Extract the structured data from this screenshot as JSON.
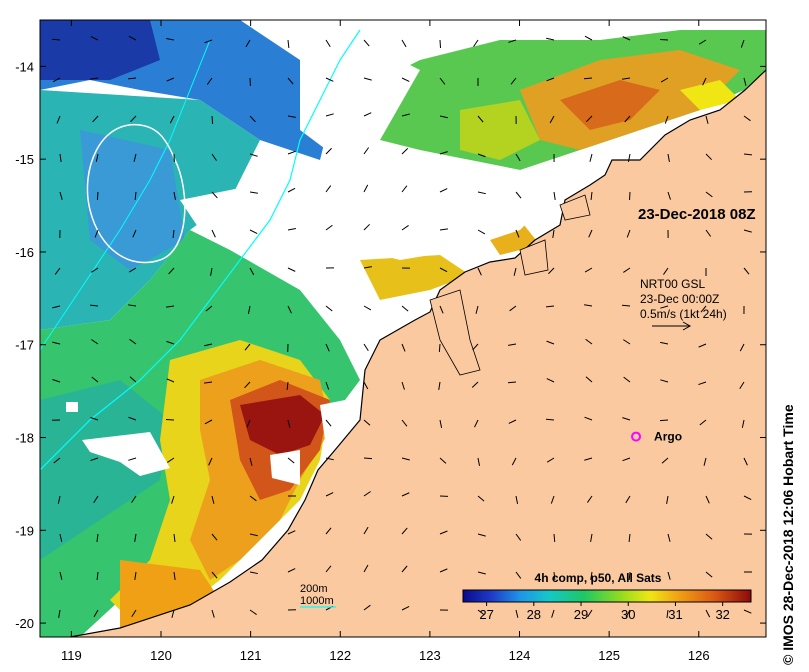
{
  "map": {
    "timestamp": "23-Dec-2018 08Z",
    "current_product": "NRT00 GSL",
    "current_time": "23-Dec 00:00Z",
    "current_scale": "0.5m/s (1kt 24h)",
    "argo_label": "Argo",
    "credit": "© IMOS 28-Dec-2018 12:06 Hobart Time",
    "isobath_200": "200m",
    "isobath_1000": "1000m",
    "colorbar_title": "4h comp, p50, All Sats",
    "colorbar_ticks": [
      "27",
      "28",
      "29",
      "30",
      "31",
      "32"
    ],
    "colorbar_values": [
      27,
      28,
      29,
      30,
      31,
      32
    ],
    "colorbar_range": [
      26.5,
      32.6
    ],
    "lon_ticks": [
      "119",
      "120",
      "121",
      "122",
      "123",
      "124",
      "125",
      "126"
    ],
    "lon_values": [
      119,
      120,
      121,
      122,
      123,
      124,
      125,
      126
    ],
    "lat_ticks": [
      "-14",
      "-15",
      "-16",
      "-17",
      "-18",
      "-19",
      "-20"
    ],
    "lat_values": [
      -14,
      -15,
      -16,
      -17,
      -18,
      -19,
      -20
    ],
    "lon_range": [
      118.65,
      126.75
    ],
    "lat_range": [
      -13.5,
      -20.15
    ],
    "argo_position": [
      125.3,
      -17.99
    ],
    "colors": {
      "land": "#fac9a0",
      "isobath_200": "#00ffff",
      "isobath_1000": "#ffffff",
      "argo": "#ff00ff"
    }
  }
}
